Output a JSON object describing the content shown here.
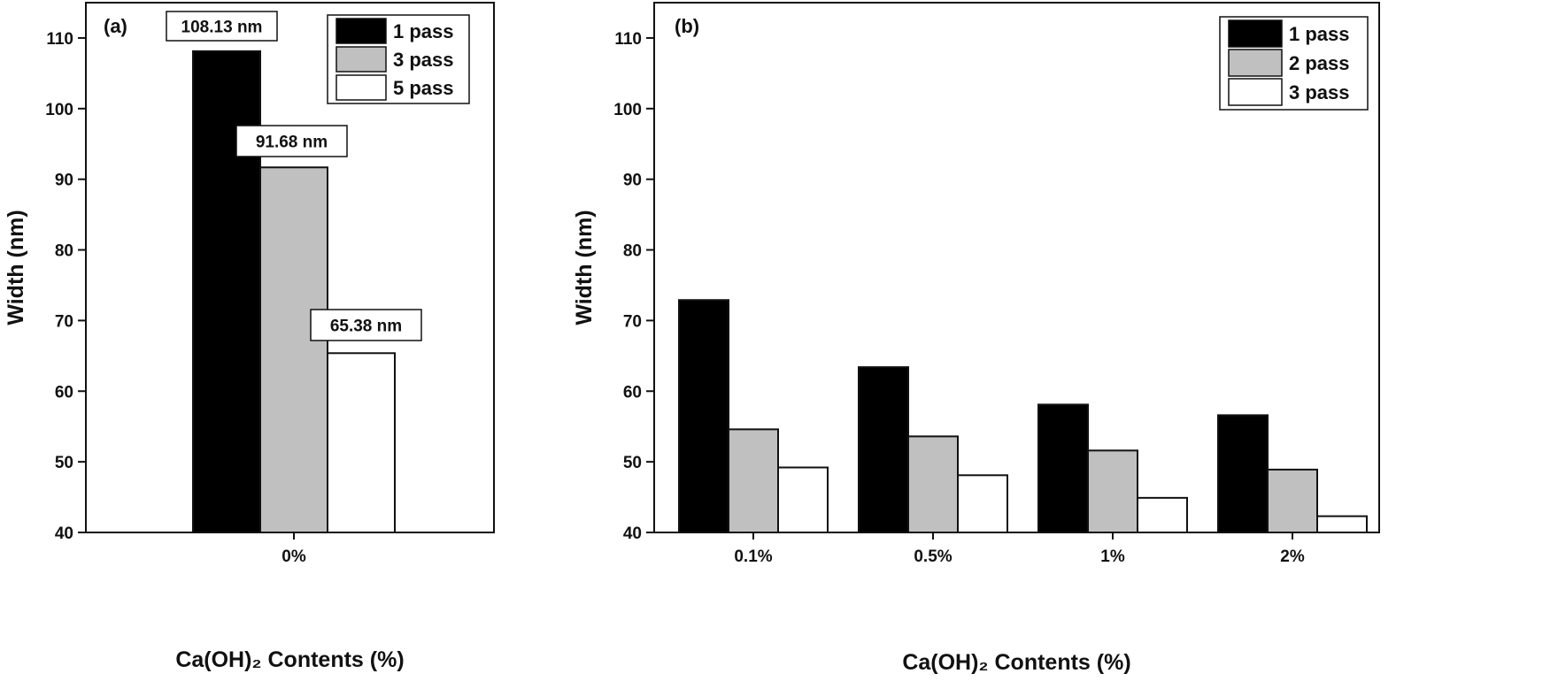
{
  "chart_data": [
    {
      "type": "bar",
      "panel_label": "(a)",
      "categories": [
        "0%"
      ],
      "series": [
        {
          "name": "1 pass",
          "values": [
            108.13
          ],
          "color": "#000000"
        },
        {
          "name": "3 pass",
          "values": [
            91.68
          ],
          "color": "#c0c0c0"
        },
        {
          "name": "5 pass",
          "values": [
            65.38
          ],
          "color": "#ffffff"
        }
      ],
      "annotations": [
        "108.13 nm",
        "91.68 nm",
        "65.38 nm"
      ],
      "xlabel": "Ca(OH)₂   Contents (%)",
      "ylabel": "Width (nm)",
      "ylim": [
        40,
        115
      ],
      "yticks": [
        40,
        50,
        60,
        70,
        80,
        90,
        100,
        110
      ],
      "legend": "top-right",
      "grid": false
    },
    {
      "type": "bar",
      "panel_label": "(b)",
      "categories": [
        "0.1%",
        "0.5%",
        "1%",
        "2%"
      ],
      "series": [
        {
          "name": "1 pass",
          "values": [
            72.9,
            63.4,
            58.1,
            56.6
          ],
          "color": "#000000"
        },
        {
          "name": "2 pass",
          "values": [
            54.6,
            53.6,
            51.6,
            48.9
          ],
          "color": "#c0c0c0"
        },
        {
          "name": "3 pass",
          "values": [
            49.2,
            48.1,
            44.9,
            42.3
          ],
          "color": "#ffffff"
        }
      ],
      "xlabel": "Ca(OH)₂  Contents (%)",
      "ylabel": "Width (nm)",
      "ylim": [
        40,
        115
      ],
      "yticks": [
        40,
        50,
        60,
        70,
        80,
        90,
        100,
        110
      ],
      "legend": "top-right",
      "grid": false
    }
  ]
}
